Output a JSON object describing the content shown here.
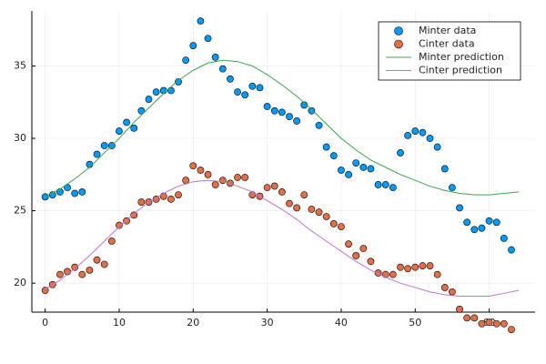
{
  "chart_data": {
    "type": "scatter",
    "xlim": [
      -1.8,
      66.2
    ],
    "ylim": [
      18,
      38.8
    ],
    "xticks": [
      0,
      10,
      20,
      30,
      40,
      50,
      60
    ],
    "yticks": [
      20,
      25,
      30,
      35
    ],
    "grid": true,
    "legend": "top-right",
    "series": [
      {
        "name": "Minter data",
        "type": "scatter",
        "color": "#009afa",
        "x": [
          0,
          1,
          2,
          3,
          4,
          5,
          6,
          7,
          8,
          9,
          10,
          11,
          12,
          13,
          14,
          15,
          16,
          17,
          18,
          19,
          20,
          21,
          22,
          23,
          24,
          25,
          26,
          27,
          28,
          29,
          30,
          31,
          32,
          33,
          34,
          35,
          36,
          37,
          38,
          39,
          40,
          41,
          42,
          43,
          44,
          45,
          46,
          47,
          48,
          49,
          50,
          51,
          52,
          53,
          54,
          55,
          56,
          57,
          58,
          59,
          60,
          61,
          62,
          63
        ],
        "values": [
          25.96,
          26.1,
          26.3,
          26.6,
          26.2,
          26.3,
          28.2,
          28.9,
          29.5,
          29.5,
          30.5,
          31.1,
          30.7,
          31.9,
          32.7,
          33.2,
          33.3,
          33.3,
          33.9,
          35.4,
          36.4,
          38.1,
          36.9,
          35.6,
          34.8,
          34.1,
          33.2,
          33.0,
          33.6,
          33.5,
          32.2,
          31.9,
          31.8,
          31.5,
          31.2,
          32.3,
          31.9,
          30.9,
          29.4,
          28.8,
          27.8,
          27.5,
          28.3,
          28.0,
          27.9,
          26.8,
          26.8,
          26.6,
          29.0,
          30.2,
          30.5,
          30.4,
          30.0,
          29.4,
          27.9,
          26.6,
          25.2,
          24.2,
          23.7,
          23.8,
          24.3,
          24.2,
          23.1,
          22.3
        ]
      },
      {
        "name": "Cinter data",
        "type": "scatter",
        "color": "#e26f46",
        "x": [
          0,
          1,
          2,
          3,
          4,
          5,
          6,
          7,
          8,
          9,
          10,
          11,
          12,
          13,
          14,
          15,
          16,
          17,
          18,
          19,
          20,
          21,
          22,
          23,
          24,
          25,
          26,
          27,
          28,
          29,
          30,
          31,
          32,
          33,
          34,
          35,
          36,
          37,
          38,
          39,
          40,
          41,
          42,
          43,
          44,
          45,
          46,
          47,
          48,
          49,
          50,
          51,
          52,
          53,
          54,
          55,
          56,
          57,
          58,
          59,
          60,
          61,
          62,
          63
        ],
        "values": [
          19.5,
          19.9,
          20.6,
          20.8,
          21.1,
          20.6,
          20.9,
          21.6,
          21.3,
          22.9,
          24.0,
          24.3,
          24.7,
          25.6,
          25.6,
          25.8,
          26.0,
          25.8,
          26.1,
          27.1,
          28.1,
          27.8,
          27.5,
          26.8,
          27.1,
          26.9,
          27.3,
          27.3,
          26.1,
          26.0,
          26.6,
          26.7,
          26.3,
          25.5,
          25.2,
          26.1,
          25.1,
          24.9,
          24.6,
          24.1,
          23.9,
          22.7,
          21.9,
          22.4,
          21.5,
          20.7,
          20.6,
          20.6,
          21.1,
          21.0,
          21.1,
          21.2,
          21.2,
          20.6,
          19.7,
          19.4,
          18.2,
          17.6,
          17.6,
          17.2,
          17.3,
          17.2,
          17.2,
          16.8
        ]
      },
      {
        "name": "Minter prediction",
        "type": "line",
        "color": "#3da44d",
        "x": [
          0,
          2,
          4,
          6,
          8,
          10,
          12,
          14,
          16,
          18,
          20,
          22,
          24,
          26,
          28,
          30,
          32,
          34,
          36,
          38,
          40,
          42,
          44,
          46,
          48,
          50,
          52,
          54,
          56,
          58,
          60,
          62,
          64
        ],
        "values": [
          26.0,
          26.5,
          27.2,
          28.0,
          29.0,
          30.0,
          31.1,
          32.1,
          33.1,
          34.0,
          34.7,
          35.2,
          35.4,
          35.3,
          35.0,
          34.4,
          33.7,
          32.9,
          32.0,
          31.0,
          30.0,
          29.2,
          28.5,
          28.0,
          27.5,
          27.1,
          26.7,
          26.4,
          26.2,
          26.1,
          26.1,
          26.2,
          26.3
        ]
      },
      {
        "name": "Cinter prediction",
        "type": "line",
        "color": "#c371d2",
        "x": [
          0,
          2,
          4,
          6,
          8,
          10,
          12,
          14,
          16,
          18,
          20,
          22,
          24,
          26,
          28,
          30,
          32,
          34,
          36,
          38,
          40,
          42,
          44,
          46,
          48,
          50,
          52,
          54,
          56,
          58,
          60,
          62,
          64
        ],
        "values": [
          19.6,
          20.2,
          21.0,
          21.9,
          22.9,
          23.9,
          24.8,
          25.6,
          26.2,
          26.7,
          27.0,
          27.1,
          27.0,
          26.7,
          26.3,
          25.7,
          25.1,
          24.4,
          23.6,
          22.9,
          22.2,
          21.5,
          20.9,
          20.4,
          20.0,
          19.7,
          19.4,
          19.2,
          19.1,
          19.1,
          19.1,
          19.3,
          19.5
        ]
      }
    ]
  }
}
